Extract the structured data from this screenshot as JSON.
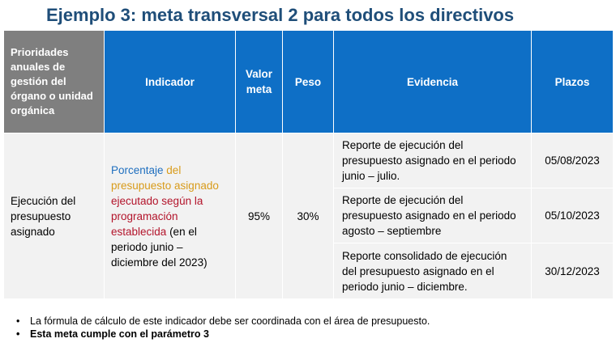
{
  "title": "Ejemplo 3: meta transversal 2 para todos los directivos",
  "table": {
    "headers": {
      "prioridades": "Prioridades anuales de gestión del órgano o unidad orgánica",
      "indicador": "Indicador",
      "valor_meta": "Valor meta",
      "peso": "Peso",
      "evidencia": "Evidencia",
      "plazos": "Plazos"
    },
    "row": {
      "prioridad": "Ejecución del presupuesto asignado",
      "indicador_parts": {
        "p1": "Porcentaje",
        "p2": " del presupuesto asignado ",
        "p3": "ejecutado según la programación establecida",
        "p4": " (en el periodo junio – diciembre del 2023)"
      },
      "valor_meta": "95%",
      "peso": "30%"
    },
    "evidencias": [
      {
        "evidencia": "Reporte de ejecución del presupuesto asignado en el periodo junio – julio.",
        "plazo": "05/08/2023"
      },
      {
        "evidencia": "Reporte de ejecución del presupuesto asignado en el periodo agosto – septiembre",
        "plazo": "05/10/2023"
      },
      {
        "evidencia": "Reporte consolidado de ejecución del presupuesto asignado en el periodo junio – diciembre.",
        "plazo": "30/12/2023"
      }
    ]
  },
  "notes": {
    "bullet": "•",
    "items": [
      "La fórmula de cálculo de este indicador debe ser coordinada con el área de presupuesto.",
      "Esta meta cumple con el parámetro 3"
    ]
  },
  "colors": {
    "header_blue": "#0e6fc6",
    "header_gray": "#7f7f7f",
    "title": "#1f4e79",
    "indicator_blue": "#1f6fbf",
    "indicator_gold": "#d89b1a",
    "indicator_red": "#b3142b"
  }
}
